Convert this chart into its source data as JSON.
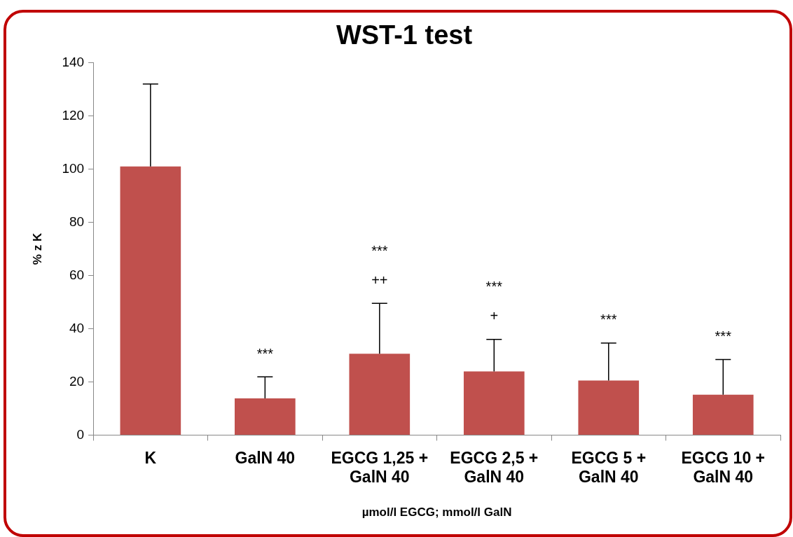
{
  "chart_data": {
    "type": "bar",
    "title": "WST-1 test",
    "xlabel": "µmol/l EGCG; mmol/l GalN",
    "ylabel": "% z K",
    "categories": [
      "K",
      "GalN 40",
      "EGCG 1,25 + GalN 40",
      "EGCG 2,5 + GalN 40",
      "EGCG 5 + GalN 40",
      "EGCG 10 + GalN 40"
    ],
    "values": [
      101,
      13.8,
      30.6,
      23.9,
      20.5,
      15.2
    ],
    "errors": [
      [
        101,
        132
      ],
      [
        13.8,
        21.9
      ],
      [
        30.6,
        49.5
      ],
      [
        23.9,
        36
      ],
      [
        20.5,
        34.6
      ],
      [
        15.2,
        28.4
      ]
    ],
    "color": "#c0504d",
    "ylim": [
      0,
      140
    ],
    "yticks": [
      0,
      20,
      40,
      60,
      80,
      100,
      120,
      140
    ],
    "grid": false,
    "legend": false,
    "annotations": [
      "***",
      "***",
      "++",
      "***",
      "+",
      "***",
      "***"
    ]
  }
}
